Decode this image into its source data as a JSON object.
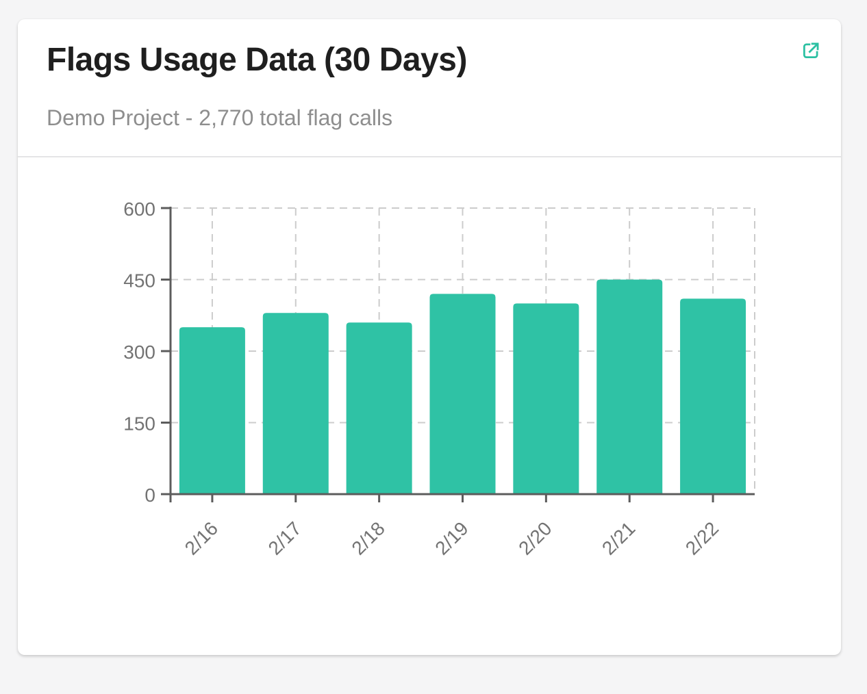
{
  "card": {
    "title": "Flags Usage Data (30 Days)",
    "subtitle": "Demo Project - 2,770 total flag calls",
    "external_link_icon": "external-link"
  },
  "colors": {
    "page_bg": "#f5f5f6",
    "card_bg": "#ffffff",
    "title_text": "#1f1f1f",
    "subtitle_text": "#8e8e8e",
    "divider": "#e4e4e6",
    "accent_icon": "#2bc0a2",
    "bar_fill": "#2fc2a5",
    "axis_line": "#5c5c5c",
    "grid_line": "#cccccc",
    "tick_label": "#737373"
  },
  "chart_data": {
    "type": "bar",
    "title": "Flags Usage Data (30 Days)",
    "subtitle": "Demo Project - 2,770 total flag calls",
    "categories": [
      "2/16",
      "2/17",
      "2/18",
      "2/19",
      "2/20",
      "2/21",
      "2/22"
    ],
    "values": [
      350,
      380,
      360,
      420,
      400,
      450,
      410
    ],
    "total": 2770,
    "xlabel": "",
    "ylabel": "",
    "ylim": [
      0,
      600
    ],
    "yticks": [
      0,
      150,
      300,
      450,
      600
    ],
    "grid": "dashed",
    "legend": "none",
    "bar_color": "#2fc2a5"
  }
}
